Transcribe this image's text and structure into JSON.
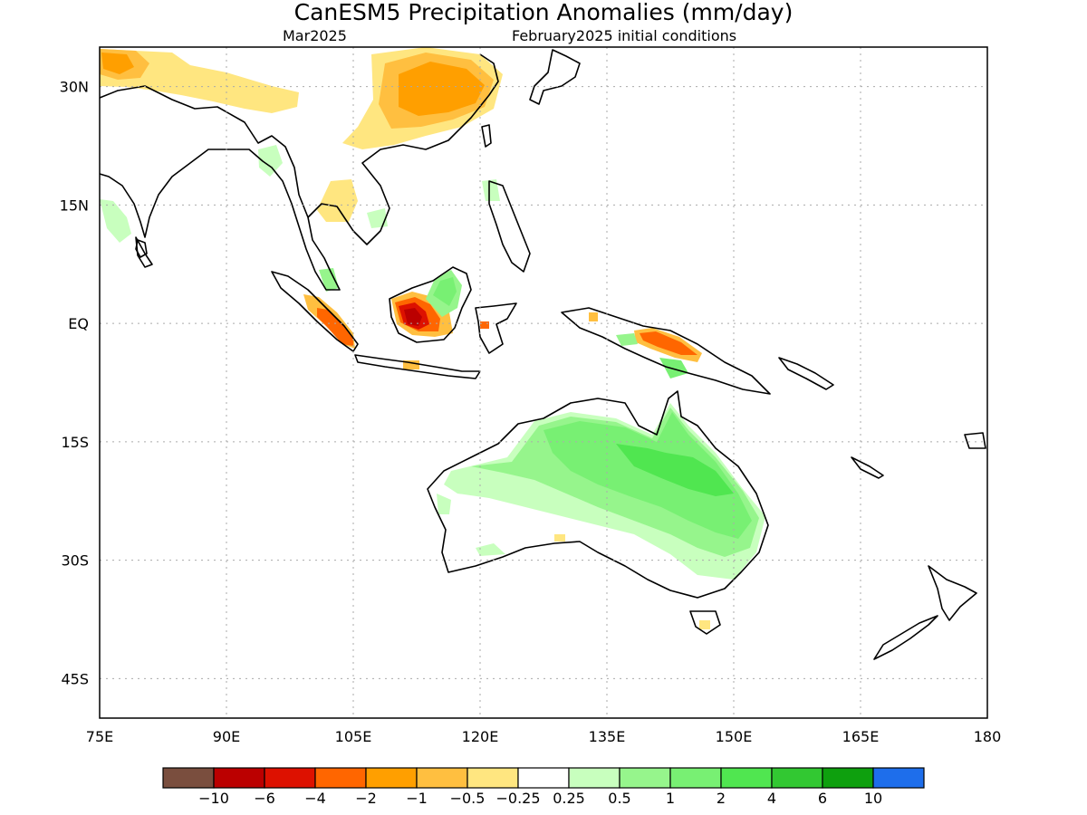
{
  "title": "CanESM5 Precipitation Anomalies (mm/day)",
  "subtitle_left": "Mar2025",
  "subtitle_right": "February2025 initial conditions",
  "map": {
    "lon_range": [
      75,
      180
    ],
    "lat_range": [
      -50,
      35
    ],
    "x_ticks": [
      "75E",
      "90E",
      "105E",
      "120E",
      "135E",
      "150E",
      "165E",
      "180"
    ],
    "y_ticks": [
      "30N",
      "15N",
      "EQ",
      "15S",
      "30S",
      "45S"
    ]
  },
  "colorbar": {
    "colors": [
      "#7a4e3e",
      "#bb0000",
      "#dd1100",
      "#ff6600",
      "#ff9f00",
      "#ffbf40",
      "#ffe680",
      "#ffffff",
      "#c8ffbe",
      "#96f58c",
      "#78f073",
      "#50e650",
      "#32c832",
      "#0ea00e",
      "#1e6eeb"
    ],
    "labels": [
      "−10",
      "−6",
      "−4",
      "−2",
      "−1",
      "−0.5",
      "−0.25",
      "0.25",
      "0.5",
      "1",
      "2",
      "4",
      "6",
      "10"
    ]
  }
}
